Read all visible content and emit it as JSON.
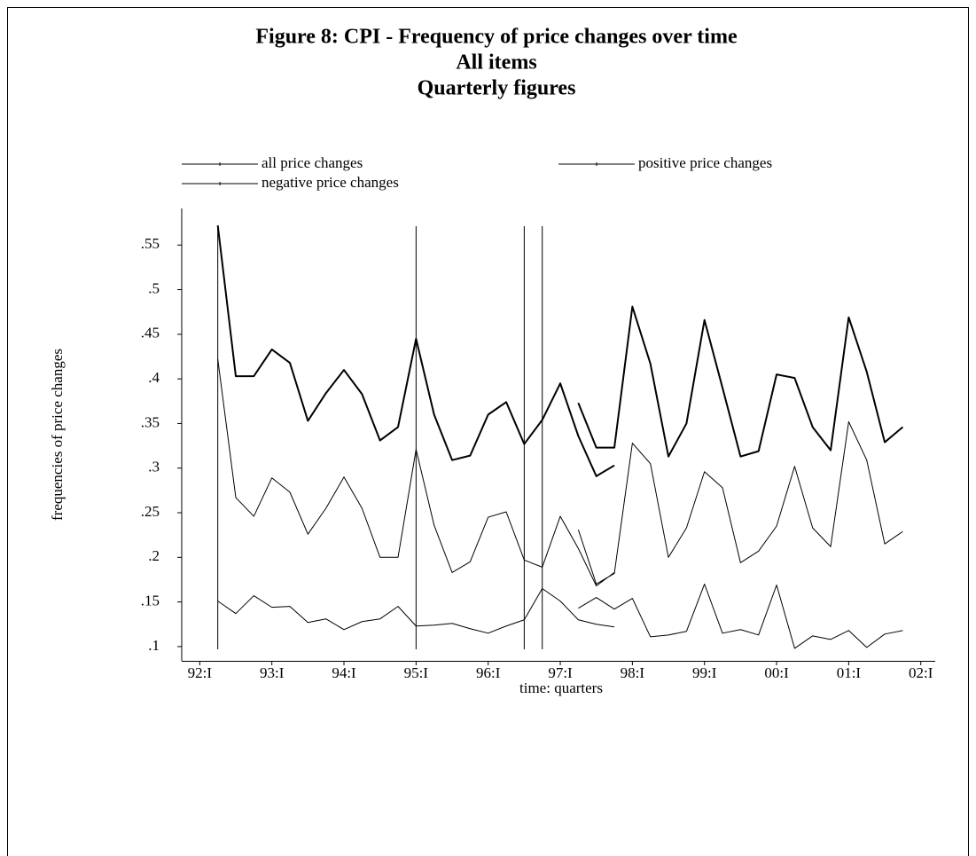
{
  "chart_data": {
    "type": "line",
    "title": [
      "Figure 8: CPI - Frequency of price changes over time",
      "All items",
      "Quarterly figures"
    ],
    "x_label": "time: quarters",
    "y_label": "frequencies of price changes",
    "x": [
      1992.25,
      1992.5,
      1992.75,
      1993,
      1993.25,
      1993.5,
      1993.75,
      1994,
      1994.25,
      1994.5,
      1994.75,
      1995,
      1995.25,
      1995.5,
      1995.75,
      1996,
      1996.25,
      1996.5,
      1996.75,
      1997,
      1997.25,
      1997.5,
      1997.75,
      null,
      1997.25,
      1997.5,
      1997.75,
      1998,
      1998.25,
      1998.5,
      1998.75,
      1999,
      1999.25,
      1999.5,
      1999.75,
      2000,
      2000.25,
      2000.5,
      2000.75,
      2001,
      2001.25,
      2001.5,
      2001.75
    ],
    "series": [
      {
        "name": "all price changes",
        "color": "#000000",
        "line_width": 2,
        "values": [
          0.572,
          0.403,
          0.403,
          0.433,
          0.418,
          0.353,
          0.384,
          0.41,
          0.383,
          0.331,
          0.346,
          0.445,
          0.36,
          0.309,
          0.314,
          0.36,
          0.374,
          0.327,
          0.354,
          0.395,
          0.336,
          0.291,
          0.303,
          null,
          0.373,
          0.323,
          0.323,
          0.481,
          0.417,
          0.313,
          0.35,
          0.466,
          0.39,
          0.313,
          0.319,
          0.405,
          0.401,
          0.346,
          0.32,
          0.469,
          0.408,
          0.329,
          0.346
        ]
      },
      {
        "name": "positive price changes",
        "color": "#000000",
        "line_width": 1,
        "values": [
          0.422,
          0.267,
          0.246,
          0.289,
          0.273,
          0.226,
          0.255,
          0.29,
          0.255,
          0.2,
          0.2,
          0.321,
          0.236,
          0.183,
          0.195,
          0.245,
          0.251,
          0.197,
          0.189,
          0.246,
          0.21,
          0.168,
          0.183,
          null,
          0.231,
          0.17,
          0.182,
          0.328,
          0.305,
          0.2,
          0.233,
          0.296,
          0.278,
          0.194,
          0.207,
          0.235,
          0.302,
          0.233,
          0.212,
          0.352,
          0.309,
          0.215,
          0.229
        ]
      },
      {
        "name": "negative price changes",
        "color": "#000000",
        "line_width": 1,
        "values": [
          0.151,
          0.137,
          0.157,
          0.144,
          0.145,
          0.127,
          0.131,
          0.119,
          0.128,
          0.131,
          0.145,
          0.123,
          0.124,
          0.126,
          0.12,
          0.115,
          0.123,
          0.13,
          0.165,
          0.151,
          0.13,
          0.125,
          0.122,
          null,
          0.143,
          0.155,
          0.142,
          0.154,
          0.111,
          0.113,
          0.117,
          0.17,
          0.115,
          0.119,
          0.113,
          0.169,
          0.098,
          0.112,
          0.108,
          0.118,
          0.099,
          0.114,
          0.118
        ]
      }
    ],
    "vlines": [
      1992.25,
      1995,
      1996.5,
      1996.75
    ],
    "xlim": [
      1991.75,
      2002.2
    ],
    "ylim": [
      0.084,
      0.591
    ],
    "xticks": [
      {
        "value": 1992,
        "label": "92:I"
      },
      {
        "value": 1993,
        "label": "93:I"
      },
      {
        "value": 1994,
        "label": "94:I"
      },
      {
        "value": 1995,
        "label": "95:I"
      },
      {
        "value": 1996,
        "label": "96:I"
      },
      {
        "value": 1997,
        "label": "97:I"
      },
      {
        "value": 1998,
        "label": "98:I"
      },
      {
        "value": 1999,
        "label": "99:I"
      },
      {
        "value": 2000,
        "label": "00:I"
      },
      {
        "value": 2001,
        "label": "01:I"
      },
      {
        "value": 2002,
        "label": "02:I"
      }
    ],
    "yticks": [
      {
        "value": 0.1,
        "label": ".1"
      },
      {
        "value": 0.15,
        "label": ".15"
      },
      {
        "value": 0.2,
        "label": ".2"
      },
      {
        "value": 0.25,
        "label": ".25"
      },
      {
        "value": 0.3,
        "label": ".3"
      },
      {
        "value": 0.35,
        "label": ".35"
      },
      {
        "value": 0.4,
        "label": ".4"
      },
      {
        "value": 0.45,
        "label": ".45"
      },
      {
        "value": 0.5,
        "label": ".5"
      },
      {
        "value": 0.55,
        "label": ".55"
      }
    ],
    "grid": false
  }
}
